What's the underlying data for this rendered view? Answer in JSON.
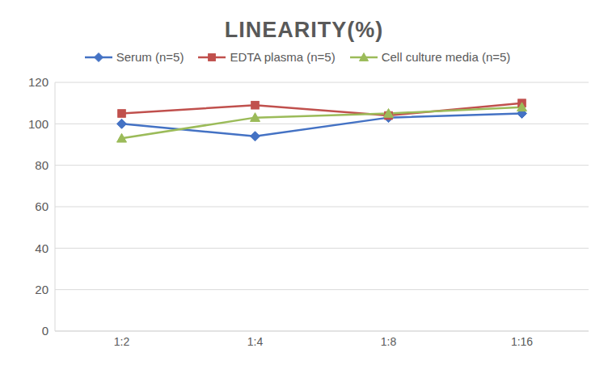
{
  "chart_data": {
    "type": "line",
    "title": "LINEARITY(%)",
    "categories": [
      "1:2",
      "1:4",
      "1:8",
      "1:16"
    ],
    "series": [
      {
        "name": "Serum (n=5)",
        "color": "#4472c4",
        "marker": "diamond",
        "values": [
          100,
          94,
          103,
          105
        ]
      },
      {
        "name": "EDTA plasma (n=5)",
        "color": "#c0504d",
        "marker": "square",
        "values": [
          105,
          109,
          104,
          110
        ]
      },
      {
        "name": "Cell culture media (n=5)",
        "color": "#9bbb59",
        "marker": "triangle",
        "values": [
          93,
          103,
          105,
          108
        ]
      }
    ],
    "ylim": [
      0,
      120
    ],
    "yticks": [
      0,
      20,
      40,
      60,
      80,
      100,
      120
    ],
    "grid": true,
    "legend": "top"
  }
}
